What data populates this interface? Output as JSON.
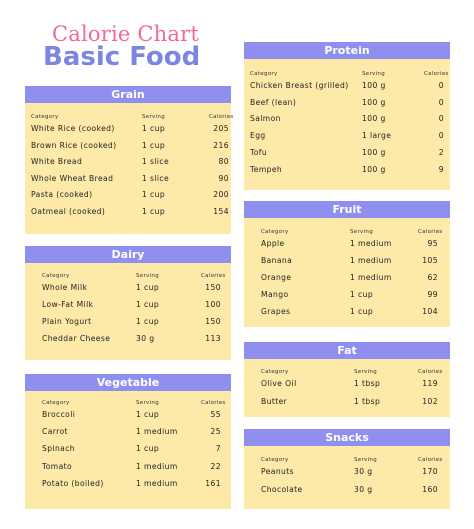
{
  "title_line1": "Calorie Chart",
  "title_line2": "Basic Food",
  "column_headers": {
    "category": "Category",
    "serving": "Serving",
    "calories": "Calories"
  },
  "sections": {
    "grain": {
      "title": "Grain",
      "rows": [
        {
          "item": "White Rice (cooked)",
          "serving": "1 cup",
          "calories": "205"
        },
        {
          "item": "Brown Rice (cooked)",
          "serving": "1 cup",
          "calories": "216"
        },
        {
          "item": "White Bread",
          "serving": "1 slice",
          "calories": "80"
        },
        {
          "item": "Whole Wheat Bread",
          "serving": "1 slice",
          "calories": "90"
        },
        {
          "item": "Pasta (cooked)",
          "serving": "1 cup",
          "calories": "200"
        },
        {
          "item": "Oatmeal (cooked)",
          "serving": "1 cup",
          "calories": "154"
        }
      ]
    },
    "dairy": {
      "title": "Dairy",
      "rows": [
        {
          "item": "Whole Milk",
          "serving": "1 cup",
          "calories": "150"
        },
        {
          "item": "Low-Fat Milk",
          "serving": "1 cup",
          "calories": "100"
        },
        {
          "item": "Plain Yogurt",
          "serving": "1 cup",
          "calories": "150"
        },
        {
          "item": "Cheddar Cheese",
          "serving": "30 g",
          "calories": "113"
        }
      ]
    },
    "vegetable": {
      "title": "Vegetable",
      "rows": [
        {
          "item": "Broccoli",
          "serving": "1 cup",
          "calories": "55"
        },
        {
          "item": "Carrot",
          "serving": "1 medium",
          "calories": "25"
        },
        {
          "item": "Spinach",
          "serving": "1 cup",
          "calories": "7"
        },
        {
          "item": "Tomato",
          "serving": "1 medium",
          "calories": "22"
        },
        {
          "item": "Potato (boiled)",
          "serving": "1 medium",
          "calories": "161"
        }
      ]
    },
    "protein": {
      "title": "Protein",
      "rows": [
        {
          "item": "Chicken Breast (grilled)",
          "serving": "100 g",
          "calories": "0"
        },
        {
          "item": "Beef (lean)",
          "serving": "100 g",
          "calories": "0"
        },
        {
          "item": "Salmon",
          "serving": "100 g",
          "calories": "0"
        },
        {
          "item": "Egg",
          "serving": "1 large",
          "calories": "0"
        },
        {
          "item": "Tofu",
          "serving": "100 g",
          "calories": "2"
        },
        {
          "item": "Tempeh",
          "serving": "100 g",
          "calories": "9"
        }
      ]
    },
    "fruit": {
      "title": "Fruit",
      "rows": [
        {
          "item": "Apple",
          "serving": "1 medium",
          "calories": "95"
        },
        {
          "item": "Banana",
          "serving": "1 medium",
          "calories": "105"
        },
        {
          "item": "Orange",
          "serving": "1 medium",
          "calories": "62"
        },
        {
          "item": "Mango",
          "serving": "1 cup",
          "calories": "99"
        },
        {
          "item": "Grapes",
          "serving": "1 cup",
          "calories": "104"
        }
      ]
    },
    "fat": {
      "title": "Fat",
      "rows": [
        {
          "item": "Olive Oil",
          "serving": "1 tbsp",
          "calories": "119"
        },
        {
          "item": "Butter",
          "serving": "1 tbsp",
          "calories": "102"
        }
      ]
    },
    "snacks": {
      "title": "Snacks",
      "rows": [
        {
          "item": "Peanuts",
          "serving": "30 g",
          "calories": "170"
        },
        {
          "item": "Chocolate",
          "serving": "30 g",
          "calories": "160"
        }
      ]
    }
  },
  "colors": {
    "header_bg": "#8f8fef",
    "card_bg": "#fde9a8",
    "title_pink": "#f06a92",
    "title_blue": "#7b86e0"
  }
}
